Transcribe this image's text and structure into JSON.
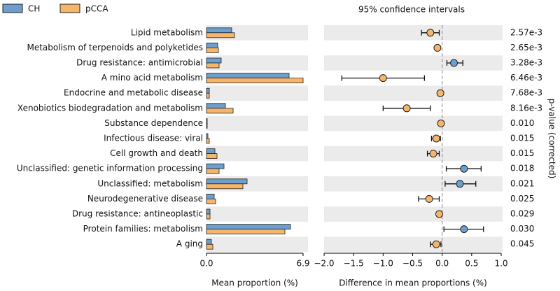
{
  "chart_data": [
    {
      "type": "bar",
      "orientation": "horizontal",
      "categories": [
        "Lipid metabolism",
        "Metabolism of terpenoids and polyketides",
        "Drug resistance: antimicrobial",
        "A mino acid metabolism",
        "Endocrine and metabolic disease",
        "Xenobiotics biodegradation and metabolism",
        "Substance dependence",
        "Infectious disease: viral",
        "Cell growth and death",
        "Unclassified: genetic information processing",
        "Unclassified: metabolism",
        "Neurodegenerative disease",
        "Drug resistance: antineoplastic",
        "Protein families: metabolism",
        "A ging"
      ],
      "series": [
        {
          "name": "CH",
          "color": "#6c9fcd",
          "values": [
            1.8,
            0.8,
            1.05,
            5.9,
            0.2,
            1.35,
            0.05,
            0.1,
            0.6,
            1.25,
            2.9,
            0.55,
            0.25,
            6.0,
            0.35
          ]
        },
        {
          "name": "pCCA",
          "color": "#f5b56b",
          "values": [
            2.0,
            0.85,
            0.9,
            6.9,
            0.2,
            1.9,
            0.05,
            0.2,
            0.75,
            0.9,
            2.6,
            0.65,
            0.25,
            5.6,
            0.45
          ]
        }
      ],
      "xlim": [
        0,
        6.9
      ],
      "xticks": [
        {
          "value": 0,
          "label": "0.0"
        },
        6.9
      ],
      "x_label": "Mean proportion (%)",
      "legend": "top-left"
    },
    {
      "type": "errorbar",
      "title": "95% confidence intervals",
      "values": [
        -0.2,
        -0.08,
        0.2,
        -1.0,
        -0.03,
        -0.6,
        -0.02,
        -0.1,
        -0.15,
        0.37,
        0.3,
        -0.22,
        -0.05,
        0.37,
        -0.1
      ],
      "ci_low": [
        -0.35,
        -0.12,
        0.08,
        -1.7,
        -0.05,
        -1.0,
        -0.04,
        -0.18,
        -0.25,
        0.07,
        0.05,
        -0.4,
        -0.08,
        0.03,
        -0.2
      ],
      "ci_high": [
        -0.05,
        -0.04,
        0.35,
        -0.3,
        -0.01,
        -0.2,
        -0.005,
        -0.03,
        -0.05,
        0.66,
        0.57,
        -0.05,
        -0.02,
        0.7,
        -0.02
      ],
      "xlim": [
        -2,
        1
      ],
      "xticks": [
        {
          "value": -2,
          "label": "−2.0"
        },
        {
          "value": -1.5,
          "label": "−1.5"
        },
        {
          "value": -1,
          "label": "−1.0"
        },
        {
          "value": -0.5,
          "label": "−0.5"
        },
        {
          "value": 0,
          "label": "0.0"
        },
        0.5,
        {
          "value": 1,
          "label": "1.0"
        }
      ],
      "x_label": "Difference in mean proportions (%)",
      "p_values": [
        0.00257,
        0.00265,
        0.00328,
        0.00646,
        0.00768,
        0.00816,
        0.01,
        0.015,
        0.015,
        0.018,
        0.021,
        0.025,
        0.029,
        0.03,
        0.045
      ],
      "p_value_labels": [
        "2.57e-3",
        "2.65e-3",
        "3.28e-3",
        "6.46e-3",
        "7.68e-3",
        "8.16e-3",
        "0.010",
        "0.015",
        "0.015",
        "0.018",
        "0.021",
        "0.025",
        "0.029",
        "0.030",
        "0.045"
      ],
      "y2_label": "p-value (corrected)"
    }
  ]
}
